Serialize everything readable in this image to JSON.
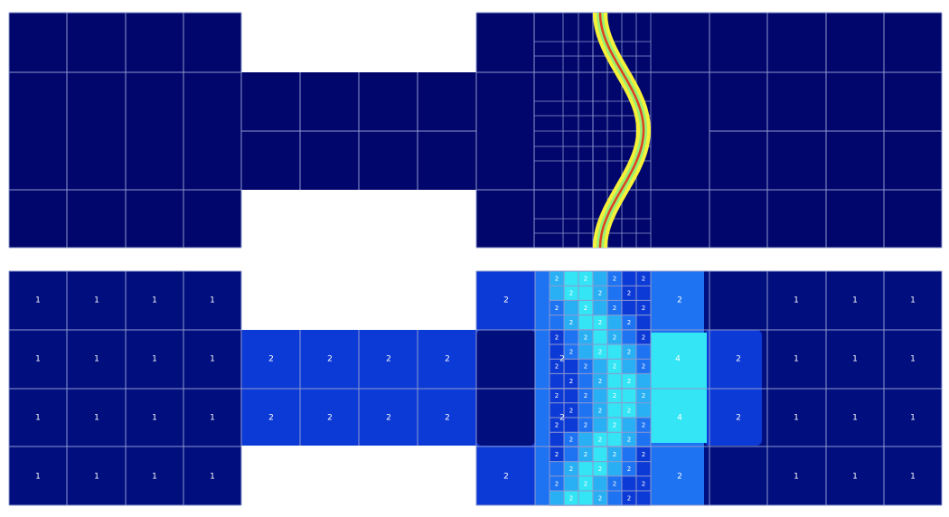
{
  "colors": {
    "background": "#ffffff",
    "level0": "#00066b",
    "level1": "#000e7e",
    "level2": "#0c3ad6",
    "level3": "#1d73f2",
    "level4": "#29b0f4",
    "level5": "#33e5f5",
    "grid": "#9aa3d6",
    "interface_outer": "#f6f03a",
    "interface_mid": "#9af070",
    "interface_core": "#e04020"
  },
  "top_panel": {
    "description_icon": "interface-contour",
    "field": "phase-field"
  },
  "bottom_panel": {
    "field": "refinement-level",
    "labels": {
      "left_block": [
        "1",
        "1",
        "1",
        "1",
        "1",
        "1",
        "1",
        "1",
        "1",
        "1",
        "1",
        "1",
        "1",
        "1",
        "1",
        "1"
      ],
      "bridge": [
        "2",
        "2",
        "2",
        "2",
        "2",
        "2",
        "2",
        "2"
      ],
      "right_block_outer": [
        "1",
        "1",
        "1",
        "1",
        "1",
        "1",
        "1",
        "1",
        "1",
        "1",
        "1",
        "1"
      ],
      "center": [
        "2",
        "2",
        "4",
        "2",
        "2",
        "4",
        "2",
        "2",
        "2",
        "2"
      ]
    }
  }
}
